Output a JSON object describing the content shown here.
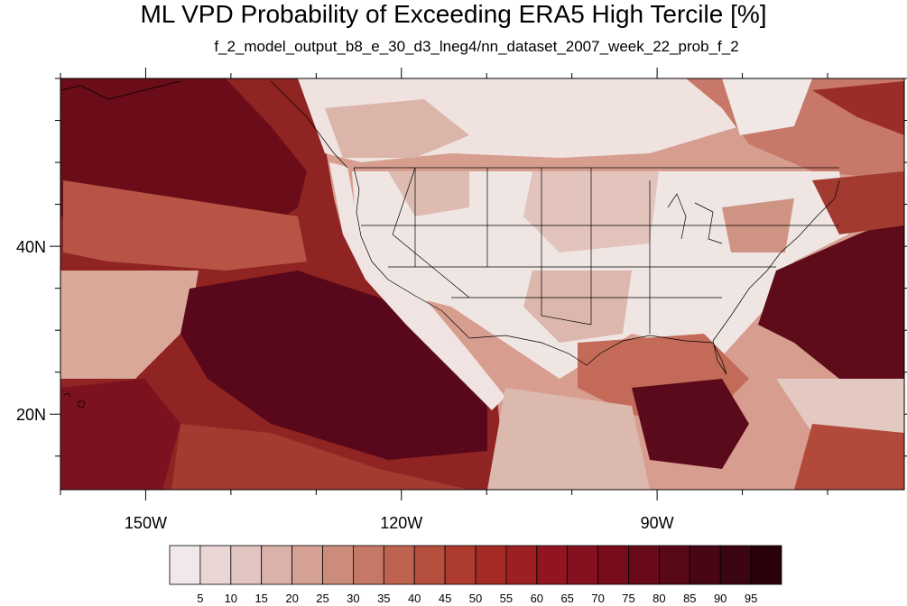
{
  "title": "ML VPD Probability of Exceeding ERA5 High Tercile [%]",
  "subtitle": "f_2_model_output_b8_e_30_d3_lneg4/nn_dataset_2007_week_22_prob_f_2",
  "map": {
    "lon_range": [
      -160,
      -61
    ],
    "lat_range": [
      11,
      60
    ],
    "lon_ticks": [
      {
        "value": -150,
        "label": "150W"
      },
      {
        "value": -120,
        "label": "120W"
      },
      {
        "value": -90,
        "label": "90W"
      }
    ],
    "lat_ticks": [
      {
        "value": 40,
        "label": "40N"
      },
      {
        "value": 20,
        "label": "20N"
      }
    ]
  },
  "colorbar": {
    "labels": [
      "5",
      "10",
      "15",
      "20",
      "25",
      "30",
      "35",
      "40",
      "45",
      "50",
      "55",
      "60",
      "65",
      "70",
      "75",
      "80",
      "85",
      "90",
      "95"
    ],
    "colors": [
      "#f1e9e9",
      "#ead7d5",
      "#e2c5c0",
      "#dbb2aa",
      "#d4a194",
      "#cc8c7c",
      "#c57865",
      "#bd6350",
      "#b5503f",
      "#ad3c2f",
      "#a52b26",
      "#9c1f22",
      "#911520",
      "#85101f",
      "#780c1d",
      "#680a1a",
      "#580817",
      "#480614",
      "#3a0410",
      "#2b020c"
    ]
  }
}
